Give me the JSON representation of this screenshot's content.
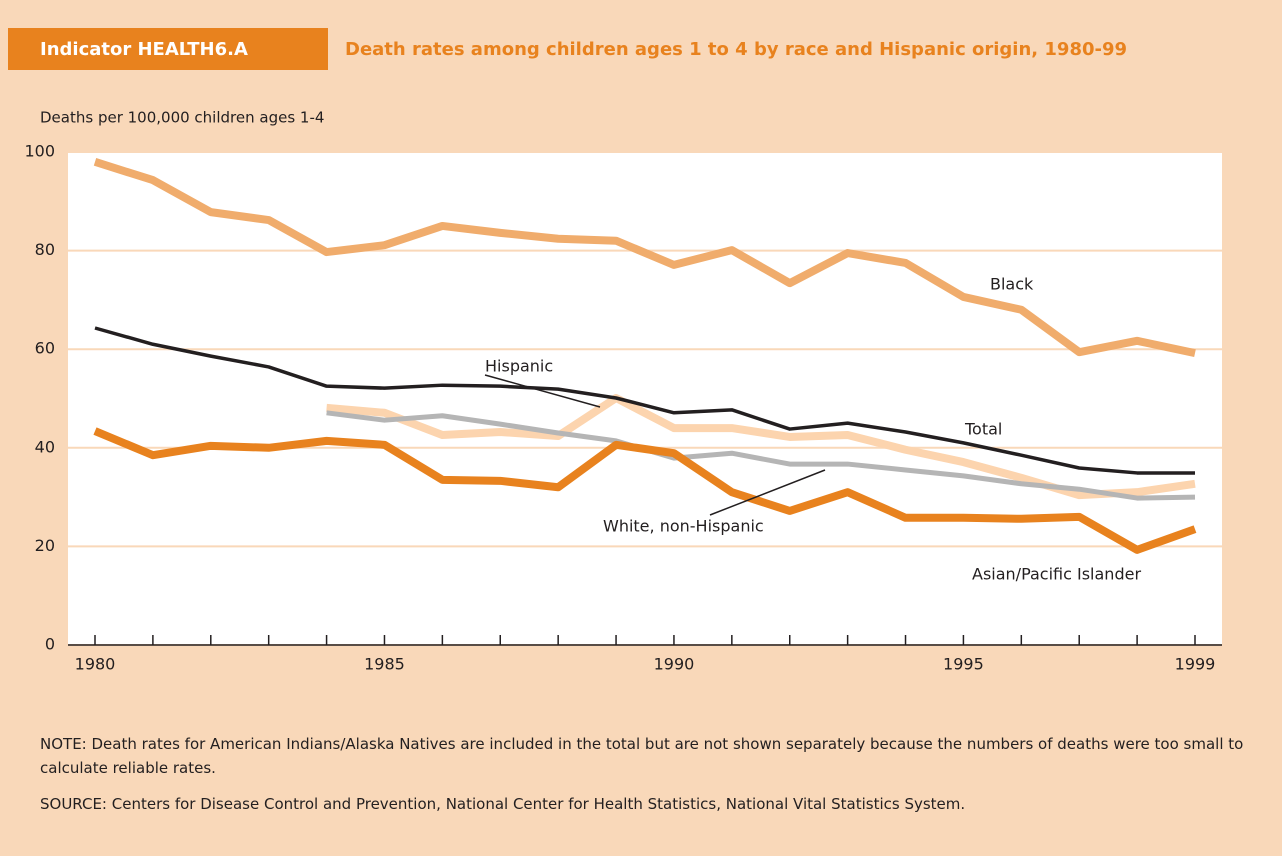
{
  "indicator": "Indicator HEALTH6.A",
  "chart_data": {
    "type": "line",
    "title": "Death rates among children ages 1 to 4 by race and Hispanic origin, 1980-99",
    "y_label": "Deaths per 100,000 children ages 1-4",
    "x": [
      1980,
      1981,
      1982,
      1983,
      1984,
      1985,
      1986,
      1987,
      1988,
      1989,
      1990,
      1991,
      1992,
      1993,
      1994,
      1995,
      1996,
      1997,
      1998,
      1999
    ],
    "xlim": [
      1980,
      1999
    ],
    "xticks": [
      1980,
      1985,
      1990,
      1995,
      1999
    ],
    "ylim": [
      0,
      100
    ],
    "yticks": [
      0,
      20,
      40,
      60,
      80,
      100
    ],
    "grid": true,
    "series": [
      {
        "name": "Black",
        "color": "#f0ac6c",
        "values": [
          98,
          94.3,
          87.8,
          86.2,
          79.7,
          81.1,
          85,
          83.6,
          82.4,
          82,
          77.1,
          80.1,
          73.4,
          79.5,
          77.5,
          70.6,
          68,
          59.4,
          61.7,
          59.2
        ]
      },
      {
        "name": "Hispanic",
        "color": "#fcd4ae",
        "values": [
          null,
          null,
          null,
          null,
          48.1,
          47.1,
          42.6,
          43.2,
          42.4,
          50.1,
          44,
          44,
          42.2,
          42.6,
          39.6,
          37.1,
          33.9,
          30.4,
          31,
          32.7
        ]
      },
      {
        "name": "Total",
        "color": "#231f20",
        "values": [
          64.3,
          61,
          58.6,
          56.4,
          52.5,
          52.1,
          52.7,
          52.5,
          51.9,
          50.1,
          47.1,
          47.7,
          43.8,
          45,
          43.2,
          41,
          38.5,
          35.9,
          34.9,
          34.9
        ]
      },
      {
        "name": "White, non-Hispanic",
        "color": "#b5b5b5",
        "values": [
          null,
          null,
          null,
          null,
          47.1,
          45.6,
          46.5,
          44.8,
          43,
          41.4,
          37.9,
          38.9,
          36.7,
          36.7,
          35.5,
          34.3,
          32.7,
          31.6,
          29.8,
          30
        ]
      },
      {
        "name": "Asian/Pacific Islander",
        "color": "#e8821e",
        "values": [
          43.4,
          38.5,
          40.4,
          40,
          41.4,
          40.6,
          33.5,
          33.3,
          32,
          40.6,
          38.9,
          31,
          27.2,
          31,
          25.8,
          25.8,
          25.6,
          26,
          19.3,
          23.5
        ]
      }
    ]
  },
  "notes": [
    "NOTE: Death rates for American Indians/Alaska Natives are included in the total but are not shown separately because the numbers of deaths were too small to calculate reliable rates.",
    "SOURCE: Centers for Disease Control and Prevention, National Center for Health Statistics, National Vital Statistics System."
  ]
}
